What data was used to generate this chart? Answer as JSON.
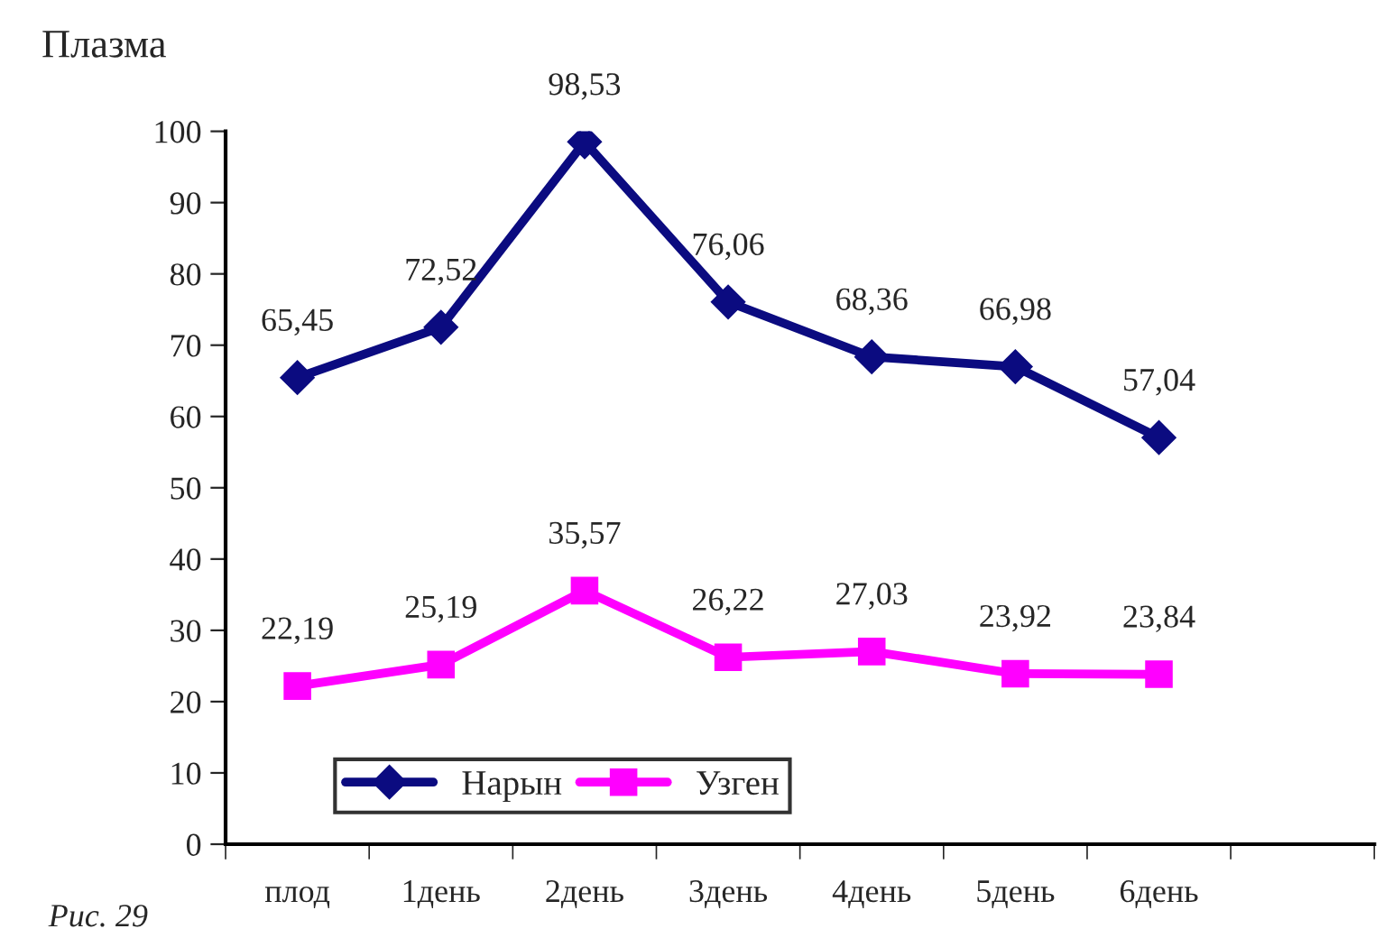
{
  "chart_data": {
    "type": "line",
    "ylabel": "Плазма",
    "categories": [
      "плод",
      "1день",
      "2день",
      "3день",
      "4день",
      "5день",
      "6день",
      null
    ],
    "series": [
      {
        "name": "Нарын",
        "color": "#0b0b80",
        "marker": "diamond",
        "values": [
          65.45,
          72.52,
          98.53,
          76.06,
          68.36,
          66.98,
          57.04,
          null
        ],
        "value_labels": [
          "65,45",
          "72,52",
          "98,53",
          "76,06",
          "68,36",
          "66,98",
          "57,04",
          null
        ]
      },
      {
        "name": "Узген",
        "color": "#ff00ff",
        "marker": "square",
        "values": [
          22.19,
          25.19,
          35.57,
          26.22,
          27.03,
          23.92,
          23.84,
          null
        ],
        "value_labels": [
          "22,19",
          "25,19",
          "35,57",
          "26,22",
          "27,03",
          "23,92",
          "23,84",
          null
        ]
      }
    ],
    "ylim": [
      0,
      100
    ],
    "yticks": [
      0,
      10,
      20,
      30,
      40,
      50,
      60,
      70,
      80,
      90,
      100
    ],
    "legend": "bottom left",
    "grid": false,
    "line_style": "solid",
    "annotations": [
      "Рис. 29"
    ]
  }
}
